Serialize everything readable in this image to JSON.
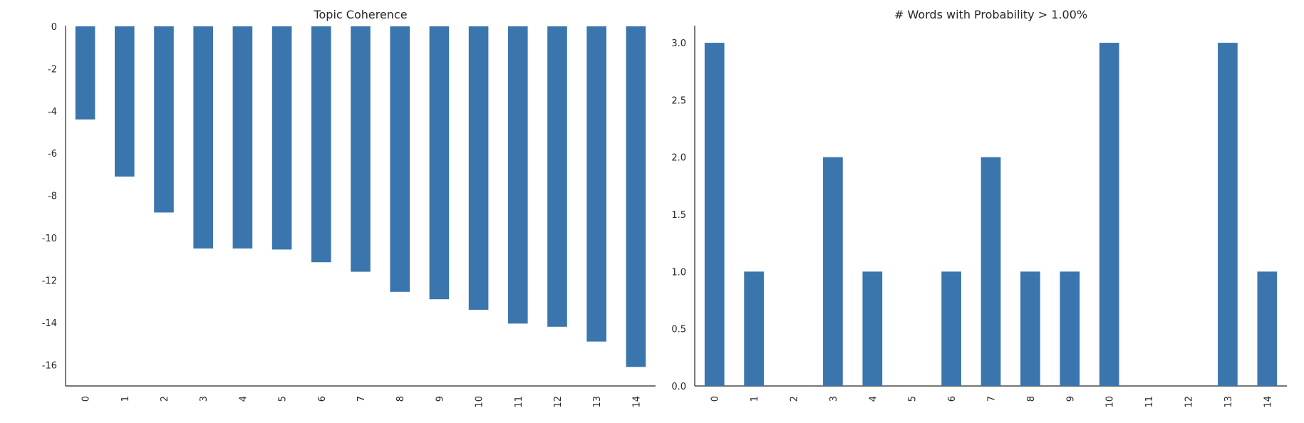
{
  "chart_data": [
    {
      "type": "bar",
      "title": "Topic Coherence",
      "xlabel": "",
      "ylabel": "",
      "categories": [
        "0",
        "1",
        "2",
        "3",
        "4",
        "5",
        "6",
        "7",
        "8",
        "9",
        "10",
        "11",
        "12",
        "13",
        "14"
      ],
      "values": [
        -4.4,
        -7.1,
        -8.8,
        -10.5,
        -10.5,
        -10.55,
        -11.15,
        -11.6,
        -12.55,
        -12.9,
        -13.4,
        -14.05,
        -14.2,
        -14.9,
        -16.1
      ],
      "ylim": [
        -17,
        0
      ],
      "yticks": [
        "0",
        "-2",
        "-4",
        "-6",
        "-8",
        "-10",
        "-12",
        "-14",
        "-16"
      ],
      "ytick_values": [
        0,
        -2,
        -4,
        -6,
        -8,
        -10,
        -12,
        -14,
        -16
      ],
      "grid": false,
      "bar_color": "#3a76ad"
    },
    {
      "type": "bar",
      "title": "# Words with Probability > 1.00%",
      "xlabel": "",
      "ylabel": "",
      "categories": [
        "0",
        "1",
        "2",
        "3",
        "4",
        "5",
        "6",
        "7",
        "8",
        "9",
        "10",
        "11",
        "12",
        "13",
        "14"
      ],
      "values": [
        3,
        1,
        0,
        2,
        1,
        0,
        1,
        2,
        1,
        1,
        3,
        0,
        0,
        3,
        1
      ],
      "ylim": [
        0,
        3.15
      ],
      "yticks": [
        "0.0",
        "0.5",
        "1.0",
        "1.5",
        "2.0",
        "2.5",
        "3.0"
      ],
      "ytick_values": [
        0,
        0.5,
        1,
        1.5,
        2,
        2.5,
        3
      ],
      "grid": false,
      "bar_color": "#3a76ad"
    }
  ]
}
